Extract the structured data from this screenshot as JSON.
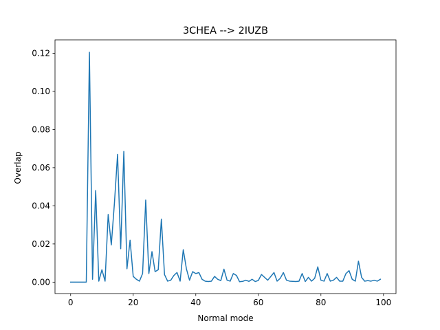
{
  "chart_data": {
    "type": "line",
    "title": "3CHEA --> 2IUZB",
    "xlabel": "Normal mode",
    "ylabel": "Overlap",
    "xlim": [
      -5,
      104
    ],
    "ylim": [
      -0.006,
      0.127
    ],
    "xticks": [
      0,
      20,
      40,
      60,
      80,
      100
    ],
    "xtick_labels": [
      "0",
      "20",
      "40",
      "60",
      "80",
      "100"
    ],
    "yticks": [
      0.0,
      0.02,
      0.04,
      0.06,
      0.08,
      0.1,
      0.12
    ],
    "ytick_labels": [
      "0.00",
      "0.02",
      "0.04",
      "0.06",
      "0.08",
      "0.10",
      "0.12"
    ],
    "grid": false,
    "color": "#1f77b4",
    "series": [
      {
        "x": [
          0,
          1,
          2,
          3,
          4,
          5,
          6,
          7,
          8,
          9,
          10,
          11,
          12,
          13,
          14,
          15,
          16,
          17,
          18,
          19,
          20,
          21,
          22,
          23,
          24,
          25,
          26,
          27,
          28,
          29,
          30,
          31,
          32,
          33,
          34,
          35,
          36,
          37,
          38,
          39,
          40,
          41,
          42,
          43,
          44,
          45,
          46,
          47,
          48,
          49,
          50,
          51,
          52,
          53,
          54,
          55,
          56,
          57,
          58,
          59,
          60,
          61,
          62,
          63,
          64,
          65,
          66,
          67,
          68,
          69,
          70,
          71,
          72,
          73,
          74,
          75,
          76,
          77,
          78,
          79,
          80,
          81,
          82,
          83,
          84,
          85,
          86,
          87,
          88,
          89,
          90,
          91,
          92,
          93,
          94,
          95,
          96,
          97,
          98,
          99
        ],
        "values": [
          0,
          0,
          0,
          0,
          0,
          0,
          0.1205,
          0.0015,
          0.048,
          0.0005,
          0.0065,
          0.0005,
          0.0355,
          0.0195,
          0.0415,
          0.067,
          0.0175,
          0.0685,
          0.007,
          0.022,
          0.003,
          0.0015,
          0.0005,
          0.0045,
          0.043,
          0.0045,
          0.016,
          0.0055,
          0.0065,
          0.033,
          0.004,
          0.0005,
          0.001,
          0.0035,
          0.005,
          0.0005,
          0.017,
          0.007,
          0.001,
          0.0055,
          0.0045,
          0.005,
          0.0015,
          0.0005,
          0.0003,
          0.0005,
          0.003,
          0.0015,
          0.0008,
          0.0068,
          0.001,
          0.0005,
          0.0045,
          0.0035,
          0.0002,
          0.0004,
          0.001,
          0.0004,
          0.0015,
          0.0003,
          0.0009,
          0.004,
          0.0025,
          0.001,
          0.003,
          0.005,
          0.0005,
          0.002,
          0.005,
          0.001,
          0.0005,
          0.0004,
          0.0003,
          0.0005,
          0.0045,
          0.0003,
          0.0025,
          0.0005,
          0.002,
          0.008,
          0.001,
          0.0005,
          0.0045,
          0.0005,
          0.001,
          0.0025,
          0.0005,
          0.0005,
          0.0045,
          0.006,
          0.0015,
          0.0005,
          0.011,
          0.0025,
          0.0005,
          0.0008,
          0.0005,
          0.001,
          0.0005,
          0.0015
        ]
      }
    ]
  }
}
